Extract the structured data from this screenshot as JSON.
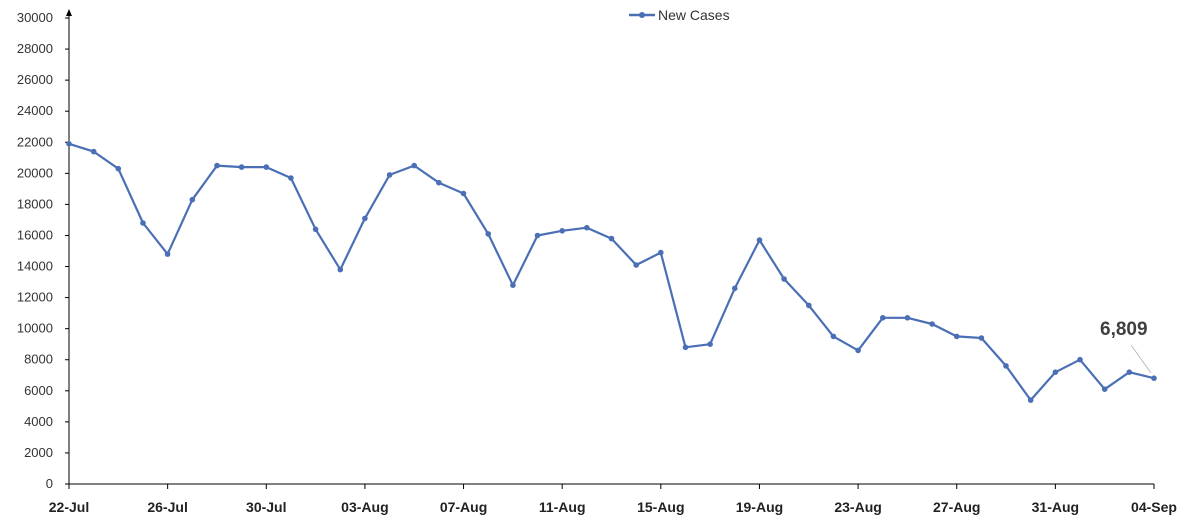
{
  "chart_data": {
    "type": "line",
    "title": "",
    "xlabel": "",
    "ylabel": "",
    "ylim": [
      0,
      30000
    ],
    "yticks": [
      0,
      2000,
      4000,
      6000,
      8000,
      10000,
      12000,
      14000,
      16000,
      18000,
      20000,
      22000,
      24000,
      26000,
      28000,
      30000
    ],
    "categories": [
      "22-Jul",
      "23-Jul",
      "24-Jul",
      "25-Jul",
      "26-Jul",
      "27-Jul",
      "28-Jul",
      "29-Jul",
      "30-Jul",
      "31-Jul",
      "01-Aug",
      "02-Aug",
      "03-Aug",
      "04-Aug",
      "05-Aug",
      "06-Aug",
      "07-Aug",
      "08-Aug",
      "09-Aug",
      "10-Aug",
      "11-Aug",
      "12-Aug",
      "13-Aug",
      "14-Aug",
      "15-Aug",
      "16-Aug",
      "17-Aug",
      "18-Aug",
      "19-Aug",
      "20-Aug",
      "21-Aug",
      "22-Aug",
      "23-Aug",
      "24-Aug",
      "25-Aug",
      "26-Aug",
      "27-Aug",
      "28-Aug",
      "29-Aug",
      "30-Aug",
      "31-Aug",
      "01-Sep",
      "02-Sep",
      "03-Sep",
      "04-Sep"
    ],
    "shown_tick_labels": [
      "22-Jul",
      "26-Jul",
      "30-Jul",
      "03-Aug",
      "07-Aug",
      "11-Aug",
      "15-Aug",
      "19-Aug",
      "23-Aug",
      "27-Aug",
      "31-Aug",
      "04-Sep"
    ],
    "series": [
      {
        "name": "New Cases",
        "color": "#4a6fb5",
        "values": [
          21900,
          21400,
          20300,
          16800,
          14800,
          18300,
          20500,
          20400,
          20400,
          19700,
          16400,
          13800,
          17100,
          19900,
          20500,
          19400,
          18700,
          16100,
          12800,
          16000,
          16300,
          16500,
          15800,
          14100,
          14900,
          8800,
          9000,
          12600,
          15700,
          13200,
          11500,
          9500,
          8600,
          10700,
          10700,
          10300,
          9500,
          9400,
          7600,
          5400,
          7200,
          8000,
          6100,
          7200,
          6809
        ]
      }
    ],
    "legend": {
      "position": "top-center",
      "label": "New Cases"
    },
    "annotations": [
      {
        "category": "04-Sep",
        "text": "6,809"
      }
    ],
    "grid": false
  }
}
